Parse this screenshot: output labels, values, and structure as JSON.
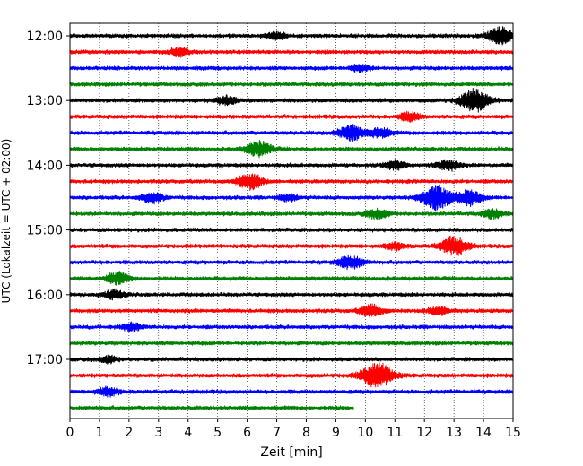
{
  "chart_data": {
    "type": "line",
    "title": "",
    "xlabel": "Zeit  [min]",
    "ylabel": "UTC (Lokalzeit = UTC + 02:00)",
    "xlim": [
      0,
      15
    ],
    "x_ticks": [
      "0",
      "1",
      "2",
      "3",
      "4",
      "5",
      "6",
      "7",
      "8",
      "9",
      "10",
      "11",
      "12",
      "13",
      "14",
      "15"
    ],
    "y_ticks": [
      "12:00",
      "13:00",
      "14:00",
      "15:00",
      "16:00",
      "17:00"
    ],
    "row_interval_min": 15,
    "grid": "vertical-dotted",
    "trace_colors": [
      "#000000",
      "#ff0000",
      "#0000ff",
      "#008000"
    ],
    "traces": [
      {
        "start": "12:00",
        "end_min": 15,
        "events": [
          {
            "t": 7.0,
            "amp": 0.4
          },
          {
            "t": 14.6,
            "amp": 1.0
          }
        ]
      },
      {
        "start": "12:15",
        "end_min": 15,
        "events": [
          {
            "t": 3.7,
            "amp": 0.5
          }
        ]
      },
      {
        "start": "12:30",
        "end_min": 15,
        "events": [
          {
            "t": 9.8,
            "amp": 0.4
          }
        ]
      },
      {
        "start": "12:45",
        "end_min": 15,
        "events": []
      },
      {
        "start": "13:00",
        "end_min": 15,
        "events": [
          {
            "t": 5.3,
            "amp": 0.5
          },
          {
            "t": 13.7,
            "amp": 1.3
          }
        ]
      },
      {
        "start": "13:15",
        "end_min": 15,
        "events": [
          {
            "t": 11.5,
            "amp": 0.5
          }
        ]
      },
      {
        "start": "13:30",
        "end_min": 15,
        "events": [
          {
            "t": 9.5,
            "amp": 0.9
          },
          {
            "t": 10.5,
            "amp": 0.6
          }
        ]
      },
      {
        "start": "13:45",
        "end_min": 15,
        "events": [
          {
            "t": 6.4,
            "amp": 0.9
          }
        ]
      },
      {
        "start": "14:00",
        "end_min": 15,
        "events": [
          {
            "t": 11.0,
            "amp": 0.5
          },
          {
            "t": 12.8,
            "amp": 0.6
          }
        ]
      },
      {
        "start": "14:15",
        "end_min": 15,
        "events": [
          {
            "t": 6.1,
            "amp": 0.9
          }
        ]
      },
      {
        "start": "14:30",
        "end_min": 15,
        "events": [
          {
            "t": 2.8,
            "amp": 0.6
          },
          {
            "t": 7.4,
            "amp": 0.4
          },
          {
            "t": 12.4,
            "amp": 1.4
          },
          {
            "t": 13.5,
            "amp": 0.9
          }
        ]
      },
      {
        "start": "14:45",
        "end_min": 15,
        "events": [
          {
            "t": 10.4,
            "amp": 0.6
          },
          {
            "t": 14.3,
            "amp": 0.5
          }
        ]
      },
      {
        "start": "15:00",
        "end_min": 15,
        "events": []
      },
      {
        "start": "15:15",
        "end_min": 15,
        "events": [
          {
            "t": 11.0,
            "amp": 0.4
          },
          {
            "t": 13.0,
            "amp": 1.1
          }
        ]
      },
      {
        "start": "15:30",
        "end_min": 15,
        "events": [
          {
            "t": 9.5,
            "amp": 0.8
          }
        ]
      },
      {
        "start": "15:45",
        "end_min": 15,
        "events": [
          {
            "t": 1.6,
            "amp": 0.7
          }
        ]
      },
      {
        "start": "16:00",
        "end_min": 15,
        "events": [
          {
            "t": 1.5,
            "amp": 0.5
          }
        ]
      },
      {
        "start": "16:15",
        "end_min": 15,
        "events": [
          {
            "t": 10.2,
            "amp": 0.7
          },
          {
            "t": 12.5,
            "amp": 0.5
          }
        ]
      },
      {
        "start": "16:30",
        "end_min": 15,
        "events": [
          {
            "t": 2.1,
            "amp": 0.4
          }
        ]
      },
      {
        "start": "16:45",
        "end_min": 15,
        "events": []
      },
      {
        "start": "17:00",
        "end_min": 15,
        "events": [
          {
            "t": 1.3,
            "amp": 0.4
          }
        ]
      },
      {
        "start": "17:15",
        "end_min": 15,
        "events": [
          {
            "t": 10.4,
            "amp": 1.5
          }
        ]
      },
      {
        "start": "17:30",
        "end_min": 15,
        "events": [
          {
            "t": 1.3,
            "amp": 0.5
          }
        ]
      },
      {
        "start": "17:45",
        "end_min": 9.6,
        "events": []
      }
    ]
  }
}
